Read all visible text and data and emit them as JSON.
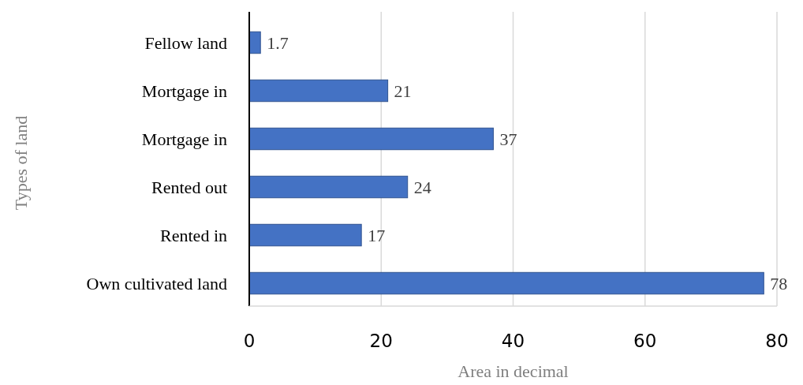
{
  "chart_data": {
    "type": "bar",
    "orientation": "horizontal",
    "xlabel": "Area in decimal",
    "ylabel": "Types of land",
    "categories": [
      "Fellow land",
      "Mortgage in",
      "Mortgage in",
      "Rented out",
      "Rented in",
      "Own cultivated land"
    ],
    "values": [
      1.7,
      21,
      37,
      24,
      17,
      78
    ],
    "color": "#4472c4",
    "xlim": [
      0,
      80
    ],
    "xticks": [
      0,
      20,
      40,
      60,
      80
    ],
    "grid": "x",
    "data_labels": true
  }
}
